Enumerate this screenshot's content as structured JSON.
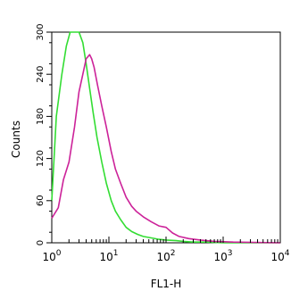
{
  "chart_data": {
    "type": "line",
    "title": "",
    "xlabel": "FL1-H",
    "ylabel": "Counts",
    "x_scale": "log",
    "xlim": [
      1,
      10000
    ],
    "ylim": [
      0,
      300
    ],
    "grid": false,
    "x_ticks": [
      {
        "value": 1,
        "base": "10",
        "exp": "0"
      },
      {
        "value": 10,
        "base": "10",
        "exp": "1"
      },
      {
        "value": 100,
        "base": "10",
        "exp": "2"
      },
      {
        "value": 1000,
        "base": "10",
        "exp": "3"
      },
      {
        "value": 10000,
        "base": "10",
        "exp": "4"
      }
    ],
    "y_ticks": [
      {
        "value": 0,
        "label": "0"
      },
      {
        "value": 60,
        "label": "60"
      },
      {
        "value": 120,
        "label": "120"
      },
      {
        "value": 180,
        "label": "180"
      },
      {
        "value": 240,
        "label": "240"
      },
      {
        "value": 300,
        "label": "300"
      }
    ],
    "series": [
      {
        "color": "#33dd33",
        "x": [
          1,
          1.2,
          1.5,
          1.8,
          2.1,
          2.5,
          3.0,
          3.5,
          4.0,
          4.6,
          5.3,
          6.2,
          7.5,
          9.0,
          11,
          13,
          16,
          20,
          25,
          32,
          40,
          55,
          75,
          100,
          150,
          200,
          300,
          500,
          1000,
          10000
        ],
        "y": [
          60,
          180,
          240,
          280,
          300,
          300,
          300,
          285,
          255,
          220,
          185,
          150,
          115,
          85,
          60,
          45,
          33,
          22,
          16,
          12,
          9,
          7,
          5,
          4,
          3,
          2,
          1,
          1,
          0,
          0
        ]
      },
      {
        "color": "#cc2299",
        "x": [
          1,
          1.3,
          1.6,
          2.0,
          2.5,
          3.0,
          3.5,
          4.0,
          4.6,
          5.0,
          5.5,
          6.3,
          7.5,
          9.0,
          11,
          13,
          16,
          20,
          25,
          30,
          40,
          55,
          75,
          100,
          130,
          170,
          250,
          400,
          700,
          1500,
          10000
        ],
        "y": [
          35,
          50,
          90,
          115,
          165,
          215,
          240,
          262,
          268,
          262,
          250,
          225,
          195,
          165,
          130,
          105,
          85,
          65,
          52,
          45,
          37,
          30,
          24,
          22,
          14,
          9,
          6,
          4,
          2,
          1,
          0
        ]
      }
    ]
  }
}
